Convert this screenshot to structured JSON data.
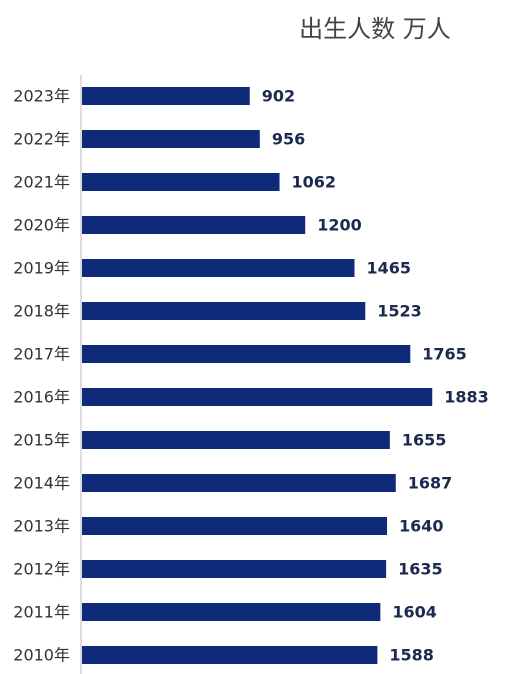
{
  "chart_data": {
    "type": "bar",
    "orientation": "horizontal",
    "title": "出生人数 万人",
    "categories": [
      "2023年",
      "2022年",
      "2021年",
      "2020年",
      "2019年",
      "2018年",
      "2017年",
      "2016年",
      "2015年",
      "2014年",
      "2013年",
      "2012年",
      "2011年",
      "2010年"
    ],
    "values": [
      902,
      956,
      1062,
      1200,
      1465,
      1523,
      1765,
      1883,
      1655,
      1687,
      1640,
      1635,
      1604,
      1588
    ],
    "color": "#0f2a78"
  }
}
